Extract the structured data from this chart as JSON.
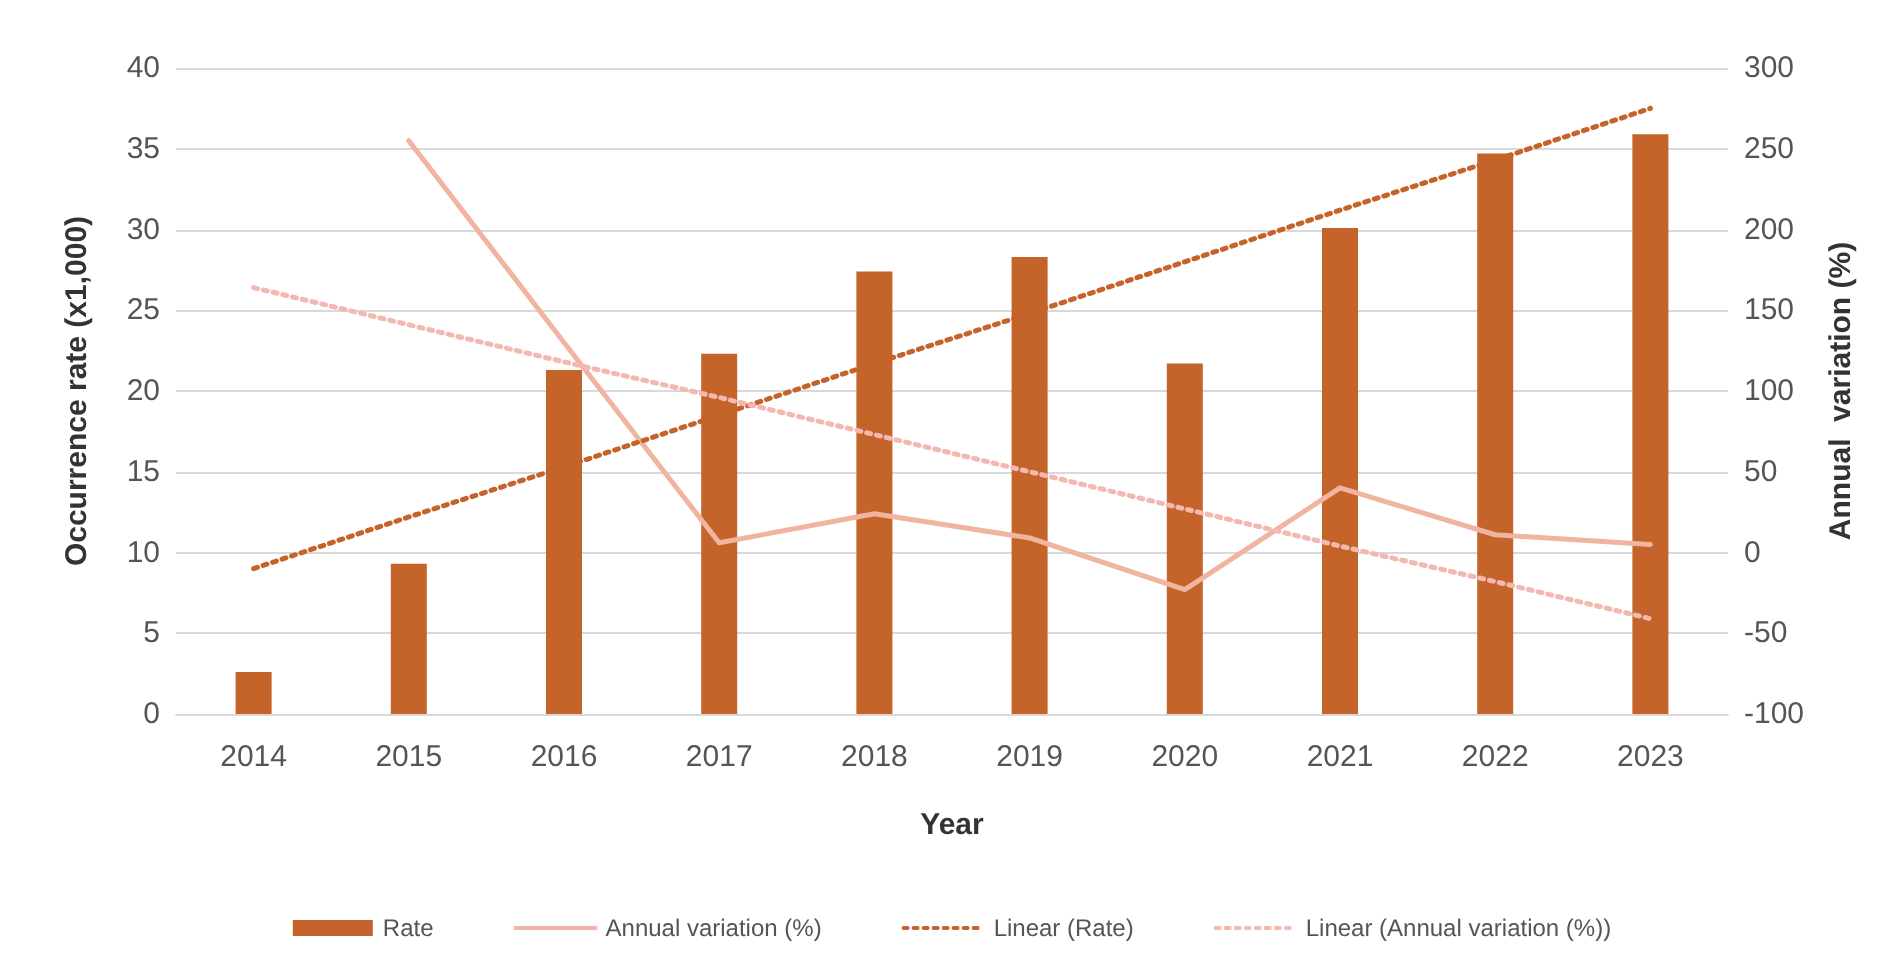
{
  "chart_data": {
    "type": "bar",
    "xlabel": "Year",
    "ylabel": "Occurrence rate (x1,000)",
    "y2label": "Annual  variation (%)",
    "categories": [
      "2014",
      "2015",
      "2016",
      "2017",
      "2018",
      "2019",
      "2020",
      "2021",
      "2022",
      "2023"
    ],
    "series": [
      {
        "name": "Rate",
        "color": "#c4632a",
        "values": [
          2.6,
          9.3,
          21.3,
          22.3,
          27.4,
          28.3,
          21.7,
          30.1,
          34.7,
          35.9
        ]
      },
      {
        "name": "Annual variation (%)",
        "type": "line",
        "axis": "y2",
        "color": "#f0b4a0",
        "line_style": "solid",
        "values": [
          null,
          255,
          130,
          6,
          24,
          9,
          -23,
          40,
          11,
          5
        ]
      },
      {
        "name": "Linear (Rate)",
        "type": "line",
        "color": "#c4632a",
        "line_style": "dotted",
        "values": [
          9.0,
          12.2,
          15.3,
          18.5,
          21.7,
          24.8,
          28.0,
          31.2,
          34.3,
          37.5
        ]
      },
      {
        "name": "Linear (Annual variation (%))",
        "type": "line",
        "axis": "y2",
        "color": "#f3b8b0",
        "line_style": "dotted",
        "values": [
          164,
          141,
          118,
          96,
          73,
          50,
          27,
          4,
          -18,
          -41
        ]
      }
    ],
    "ylim": [
      0,
      40
    ],
    "yticks": [
      0,
      5,
      10,
      15,
      20,
      25,
      30,
      35,
      40
    ],
    "y2lim": [
      -100,
      300
    ],
    "y2ticks": [
      -100,
      -50,
      0,
      50,
      100,
      150,
      200,
      250,
      300
    ],
    "grid": "y",
    "legend": "bottom",
    "marker": "none"
  }
}
